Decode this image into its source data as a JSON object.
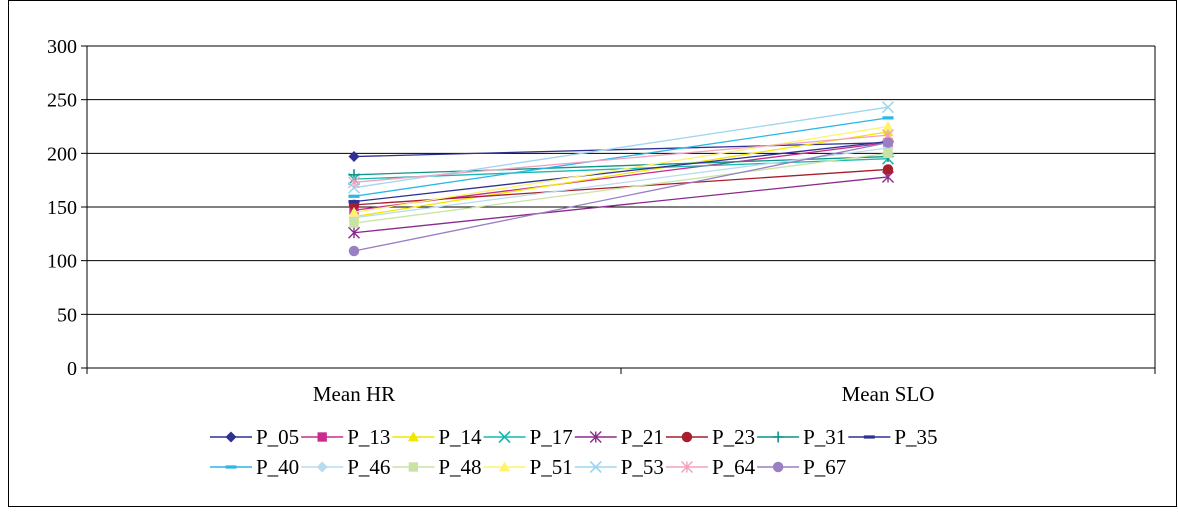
{
  "chart_data": {
    "type": "line",
    "title": "",
    "xlabel": "",
    "ylabel": "",
    "categories": [
      "Mean HR",
      "Mean SLO"
    ],
    "ylim": [
      0,
      300
    ],
    "yticks": [
      "0",
      "50",
      "100",
      "150",
      "200",
      "250",
      "300"
    ],
    "grid": true,
    "legend_position": "bottom",
    "series": [
      {
        "name": "P_05",
        "values": [
          197,
          210
        ],
        "color": "#2e3192",
        "marker": "diamond"
      },
      {
        "name": "P_13",
        "values": [
          147,
          210
        ],
        "color": "#cc2b8e",
        "marker": "square"
      },
      {
        "name": "P_14",
        "values": [
          141,
          220
        ],
        "color": "#f2e600",
        "marker": "triangle"
      },
      {
        "name": "P_17",
        "values": [
          176,
          195
        ],
        "color": "#17b8b0",
        "marker": "x"
      },
      {
        "name": "P_21",
        "values": [
          126,
          178
        ],
        "color": "#8a2a8c",
        "marker": "star"
      },
      {
        "name": "P_23",
        "values": [
          152,
          185
        ],
        "color": "#a81e2c",
        "marker": "circle"
      },
      {
        "name": "P_31",
        "values": [
          180,
          197
        ],
        "color": "#0f9488",
        "marker": "plus"
      },
      {
        "name": "P_35",
        "values": [
          155,
          211
        ],
        "color": "#2e3192",
        "marker": "dash"
      },
      {
        "name": "P_40",
        "values": [
          160,
          233
        ],
        "color": "#29b6e8",
        "marker": "dash"
      },
      {
        "name": "P_46",
        "values": [
          140,
          205
        ],
        "color": "#b8dcee",
        "marker": "diamond"
      },
      {
        "name": "P_48",
        "values": [
          135,
          200
        ],
        "color": "#c9e3a2",
        "marker": "square"
      },
      {
        "name": "P_51",
        "values": [
          145,
          225
        ],
        "color": "#fff36b",
        "marker": "triangle"
      },
      {
        "name": "P_53",
        "values": [
          168,
          243
        ],
        "color": "#9fd6ef",
        "marker": "x"
      },
      {
        "name": "P_64",
        "values": [
          173,
          217
        ],
        "color": "#f2a1c0",
        "marker": "star"
      },
      {
        "name": "P_67",
        "values": [
          109,
          210
        ],
        "color": "#9a7fc2",
        "marker": "circle"
      }
    ]
  }
}
